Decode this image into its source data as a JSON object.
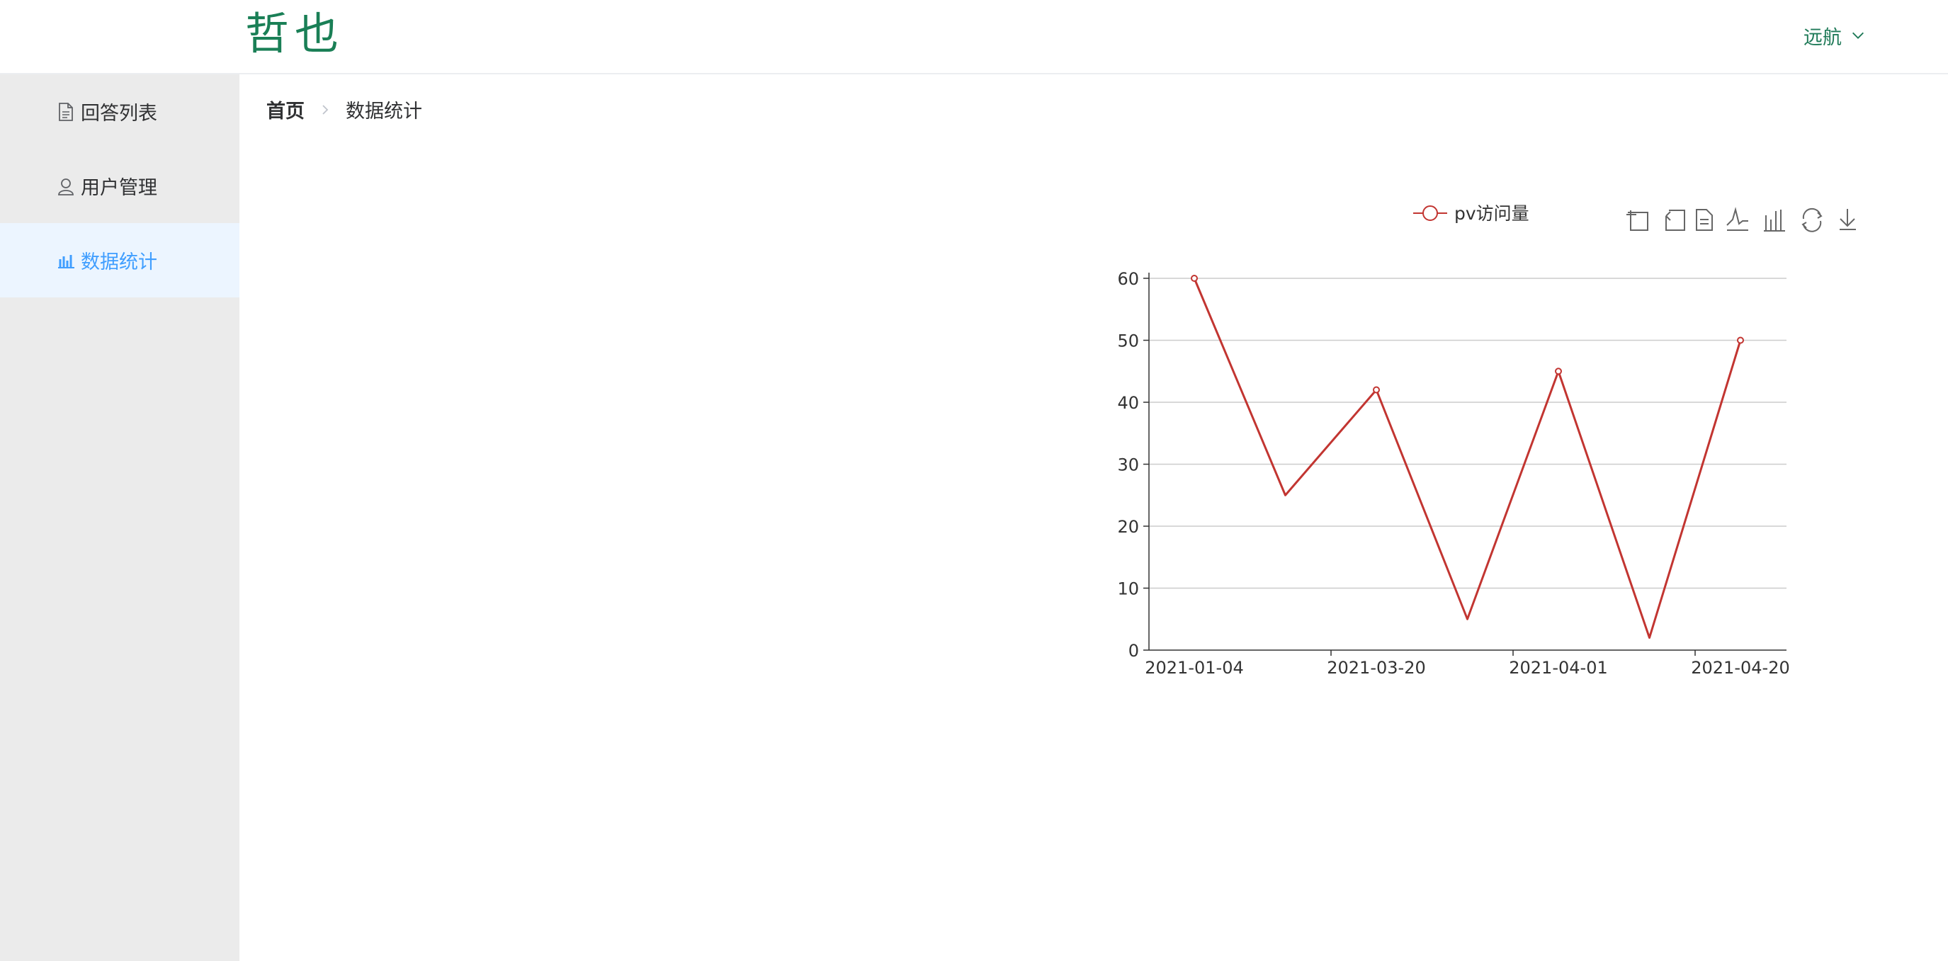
{
  "header": {
    "logo": "哲也",
    "user": "远航"
  },
  "sidebar": {
    "items": [
      {
        "label": "回答列表",
        "icon": "document-icon",
        "active": false
      },
      {
        "label": "用户管理",
        "icon": "user-icon",
        "active": false
      },
      {
        "label": "数据统计",
        "icon": "bar-chart-icon",
        "active": true
      }
    ]
  },
  "breadcrumb": {
    "home": "首页",
    "current": "数据统计"
  },
  "toolbox": [
    "zoom-icon",
    "zoom-reset-icon",
    "data-view-icon",
    "line-type-icon",
    "bar-type-icon",
    "restore-icon",
    "save-image-icon"
  ],
  "colors": {
    "accent": "#409eff",
    "brand": "#1a7f56",
    "series": "#c23531"
  },
  "chart_data": {
    "type": "line",
    "title": "",
    "xlabel": "",
    "ylabel": "",
    "x_ticks": [
      "2021-01-04",
      "2021-03-20",
      "2021-04-01",
      "2021-04-20"
    ],
    "series": [
      {
        "name": "pv访问量",
        "values": [
          60,
          25,
          42,
          5,
          45,
          2,
          50
        ]
      }
    ],
    "ylim": [
      0,
      60
    ],
    "y_ticks": [
      0,
      10,
      20,
      30,
      40,
      50,
      60
    ],
    "grid": true,
    "legend": "top-center"
  }
}
